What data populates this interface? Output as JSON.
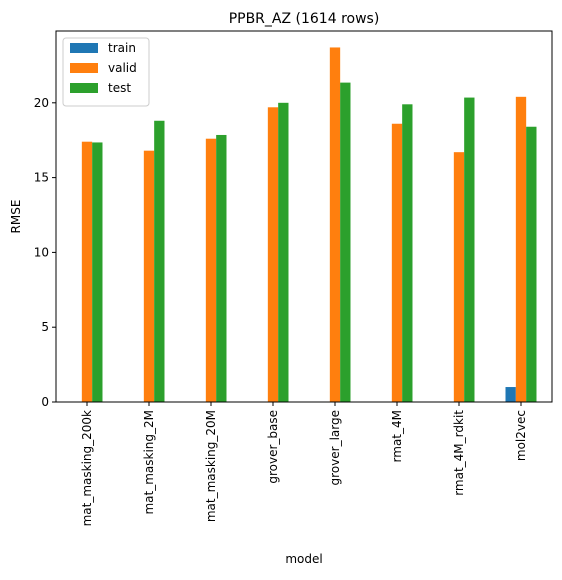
{
  "chart_data": {
    "type": "bar",
    "title": "PPBR_AZ (1614 rows)",
    "xlabel": "model",
    "ylabel": "RMSE",
    "ylim": [
      0,
      24.8
    ],
    "yticks": [
      0,
      5,
      10,
      15,
      20
    ],
    "grid": false,
    "legend_position": "top-left",
    "categories": [
      "mat_masking_200k",
      "mat_masking_2M",
      "mat_masking_20M",
      "grover_base",
      "grover_large",
      "rmat_4M",
      "rmat_4M_rdkit",
      "mol2vec"
    ],
    "series": [
      {
        "name": "train",
        "color": "#1f77b4",
        "values": [
          null,
          null,
          null,
          null,
          null,
          null,
          null,
          1.0
        ]
      },
      {
        "name": "valid",
        "color": "#ff7f0e",
        "values": [
          17.4,
          16.8,
          17.6,
          19.7,
          23.7,
          18.6,
          16.7,
          20.4
        ]
      },
      {
        "name": "test",
        "color": "#2ca02c",
        "values": [
          17.35,
          18.8,
          17.85,
          20.0,
          21.35,
          19.9,
          20.35,
          18.4
        ]
      }
    ]
  }
}
